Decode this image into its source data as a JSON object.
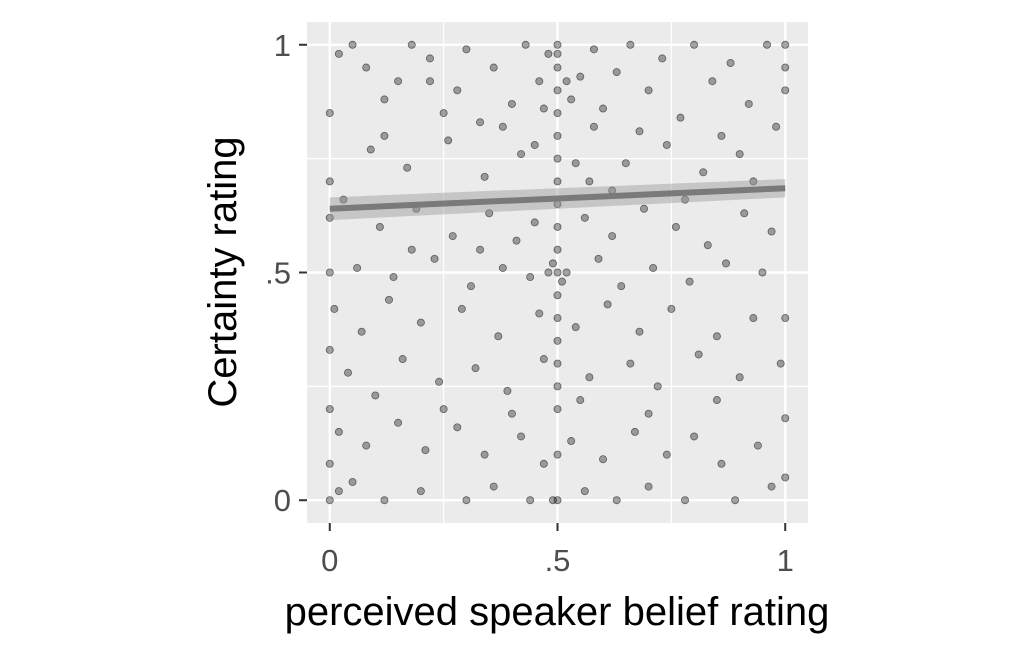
{
  "chart_data": {
    "type": "scatter",
    "xlabel": "perceived speaker belief rating",
    "ylabel": "Certainty rating",
    "xlim": [
      -0.05,
      1.05
    ],
    "ylim": [
      -0.05,
      1.05
    ],
    "x_ticks": [
      {
        "value": 0,
        "label": "0"
      },
      {
        "value": 0.5,
        "label": ".5"
      },
      {
        "value": 1,
        "label": "1"
      }
    ],
    "y_ticks": [
      {
        "value": 0,
        "label": "0"
      },
      {
        "value": 0.5,
        "label": ".5"
      },
      {
        "value": 1,
        "label": "1"
      }
    ],
    "grid": true,
    "panel_color": "#ebebeb",
    "point_color": "#000000",
    "point_opacity": 0.35,
    "trend_line": {
      "x": [
        0,
        1
      ],
      "y": [
        0.64,
        0.685
      ],
      "ci_low": [
        0.615,
        0.665
      ],
      "ci_high": [
        0.665,
        0.705
      ],
      "color": "#7a7a7a"
    },
    "series": [
      {
        "points": [
          [
            0.02,
            0.98
          ],
          [
            0.05,
            1.0
          ],
          [
            0.08,
            0.95
          ],
          [
            0.12,
            0.88
          ],
          [
            0.15,
            0.92
          ],
          [
            0.18,
            1.0
          ],
          [
            0.22,
            0.97
          ],
          [
            0.25,
            0.85
          ],
          [
            0.28,
            0.9
          ],
          [
            0.3,
            0.99
          ],
          [
            0.33,
            0.83
          ],
          [
            0.36,
            0.95
          ],
          [
            0.4,
            0.87
          ],
          [
            0.43,
            1.0
          ],
          [
            0.46,
            0.92
          ],
          [
            0.48,
            0.98
          ],
          [
            0.5,
            1.0
          ],
          [
            0.5,
            0.95
          ],
          [
            0.5,
            0.9
          ],
          [
            0.5,
            0.85
          ],
          [
            0.5,
            0.8
          ],
          [
            0.5,
            0.75
          ],
          [
            0.5,
            0.7
          ],
          [
            0.5,
            0.65
          ],
          [
            0.5,
            0.6
          ],
          [
            0.5,
            0.55
          ],
          [
            0.5,
            0.5
          ],
          [
            0.5,
            0.45
          ],
          [
            0.5,
            0.4
          ],
          [
            0.5,
            0.35
          ],
          [
            0.5,
            0.3
          ],
          [
            0.5,
            0.25
          ],
          [
            0.5,
            0.2
          ],
          [
            0.5,
            0.1
          ],
          [
            0.5,
            0.0
          ],
          [
            0.49,
            0.52
          ],
          [
            0.51,
            0.48
          ],
          [
            0.48,
            0.5
          ],
          [
            0.52,
            0.5
          ],
          [
            0.53,
            0.88
          ],
          [
            0.55,
            0.93
          ],
          [
            0.58,
            0.99
          ],
          [
            0.6,
            0.86
          ],
          [
            0.63,
            0.94
          ],
          [
            0.66,
            1.0
          ],
          [
            0.7,
            0.9
          ],
          [
            0.73,
            0.97
          ],
          [
            0.77,
            0.84
          ],
          [
            0.8,
            1.0
          ],
          [
            0.84,
            0.92
          ],
          [
            0.88,
            0.96
          ],
          [
            0.92,
            0.87
          ],
          [
            0.96,
            1.0
          ],
          [
            1.0,
            1.0
          ],
          [
            1.0,
            0.95
          ],
          [
            1.0,
            0.9
          ],
          [
            0.98,
            0.82
          ],
          [
            0.9,
            0.76
          ],
          [
            0.82,
            0.72
          ],
          [
            0.74,
            0.78
          ],
          [
            0.65,
            0.74
          ],
          [
            0.57,
            0.7
          ],
          [
            0.42,
            0.76
          ],
          [
            0.34,
            0.71
          ],
          [
            0.26,
            0.79
          ],
          [
            0.17,
            0.73
          ],
          [
            0.09,
            0.77
          ],
          [
            0.0,
            0.85
          ],
          [
            0.0,
            0.7
          ],
          [
            0.0,
            0.62
          ],
          [
            0.03,
            0.66
          ],
          [
            0.11,
            0.6
          ],
          [
            0.19,
            0.64
          ],
          [
            0.27,
            0.58
          ],
          [
            0.35,
            0.63
          ],
          [
            0.41,
            0.57
          ],
          [
            0.45,
            0.61
          ],
          [
            0.56,
            0.62
          ],
          [
            0.62,
            0.58
          ],
          [
            0.69,
            0.64
          ],
          [
            0.76,
            0.6
          ],
          [
            0.83,
            0.56
          ],
          [
            0.91,
            0.63
          ],
          [
            0.97,
            0.59
          ],
          [
            0.95,
            0.5
          ],
          [
            0.87,
            0.52
          ],
          [
            0.79,
            0.48
          ],
          [
            0.71,
            0.51
          ],
          [
            0.64,
            0.47
          ],
          [
            0.59,
            0.53
          ],
          [
            0.44,
            0.49
          ],
          [
            0.38,
            0.51
          ],
          [
            0.31,
            0.47
          ],
          [
            0.23,
            0.53
          ],
          [
            0.14,
            0.49
          ],
          [
            0.06,
            0.51
          ],
          [
            0.0,
            0.5
          ],
          [
            0.01,
            0.42
          ],
          [
            0.07,
            0.37
          ],
          [
            0.13,
            0.44
          ],
          [
            0.2,
            0.39
          ],
          [
            0.29,
            0.42
          ],
          [
            0.37,
            0.36
          ],
          [
            0.46,
            0.41
          ],
          [
            0.54,
            0.38
          ],
          [
            0.61,
            0.43
          ],
          [
            0.68,
            0.37
          ],
          [
            0.75,
            0.42
          ],
          [
            0.85,
            0.36
          ],
          [
            0.93,
            0.4
          ],
          [
            1.0,
            0.4
          ],
          [
            0.99,
            0.3
          ],
          [
            0.9,
            0.27
          ],
          [
            0.81,
            0.32
          ],
          [
            0.72,
            0.25
          ],
          [
            0.66,
            0.3
          ],
          [
            0.57,
            0.27
          ],
          [
            0.47,
            0.31
          ],
          [
            0.39,
            0.24
          ],
          [
            0.32,
            0.29
          ],
          [
            0.24,
            0.26
          ],
          [
            0.16,
            0.31
          ],
          [
            0.1,
            0.23
          ],
          [
            0.04,
            0.28
          ],
          [
            0.0,
            0.33
          ],
          [
            0.0,
            0.2
          ],
          [
            0.02,
            0.15
          ],
          [
            0.08,
            0.12
          ],
          [
            0.15,
            0.17
          ],
          [
            0.21,
            0.11
          ],
          [
            0.28,
            0.16
          ],
          [
            0.34,
            0.1
          ],
          [
            0.42,
            0.14
          ],
          [
            0.47,
            0.08
          ],
          [
            0.53,
            0.13
          ],
          [
            0.6,
            0.09
          ],
          [
            0.67,
            0.15
          ],
          [
            0.74,
            0.1
          ],
          [
            0.8,
            0.14
          ],
          [
            0.86,
            0.08
          ],
          [
            0.94,
            0.12
          ],
          [
            1.0,
            0.18
          ],
          [
            1.0,
            0.05
          ],
          [
            0.97,
            0.03
          ],
          [
            0.89,
            0.0
          ],
          [
            0.78,
            0.0
          ],
          [
            0.7,
            0.03
          ],
          [
            0.63,
            0.0
          ],
          [
            0.56,
            0.02
          ],
          [
            0.44,
            0.0
          ],
          [
            0.36,
            0.03
          ],
          [
            0.3,
            0.0
          ],
          [
            0.2,
            0.02
          ],
          [
            0.12,
            0.0
          ],
          [
            0.05,
            0.04
          ],
          [
            0.0,
            0.0
          ],
          [
            0.0,
            0.08
          ],
          [
            0.02,
            0.02
          ],
          [
            0.25,
            0.2
          ],
          [
            0.4,
            0.19
          ],
          [
            0.55,
            0.22
          ],
          [
            0.7,
            0.19
          ],
          [
            0.85,
            0.22
          ],
          [
            0.18,
            0.55
          ],
          [
            0.33,
            0.55
          ],
          [
            0.62,
            0.68
          ],
          [
            0.78,
            0.66
          ],
          [
            0.93,
            0.7
          ],
          [
            0.12,
            0.8
          ],
          [
            0.38,
            0.82
          ],
          [
            0.68,
            0.81
          ],
          [
            0.86,
            0.8
          ],
          [
            0.22,
            0.92
          ],
          [
            0.45,
            0.78
          ],
          [
            0.54,
            0.74
          ],
          [
            0.58,
            0.82
          ],
          [
            0.47,
            0.86
          ],
          [
            0.52,
            0.92
          ],
          [
            0.5,
            0.98
          ],
          [
            0.49,
            0.0
          ]
        ]
      }
    ]
  }
}
